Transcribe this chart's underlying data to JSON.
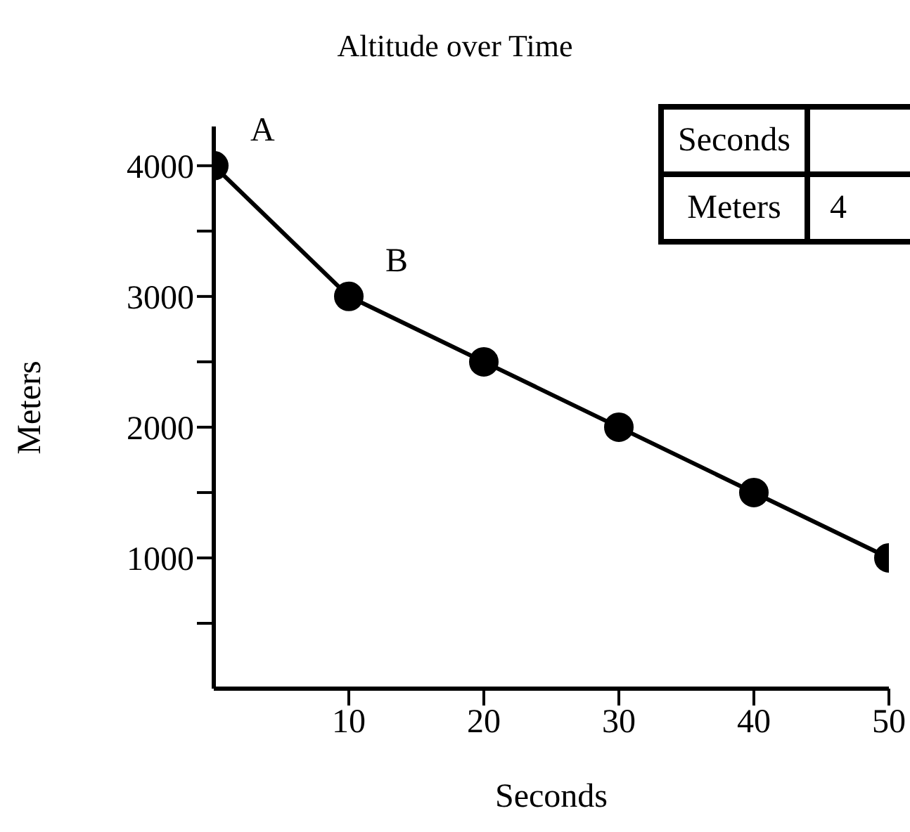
{
  "chart_data": {
    "type": "line",
    "title": "Altitude over Time",
    "xlabel": "Seconds",
    "ylabel": "Meters",
    "x": [
      0,
      10,
      20,
      30,
      40,
      50
    ],
    "series": [
      {
        "color": "#000000",
        "values": [
          4000,
          3000,
          2500,
          2000,
          1500,
          1000
        ]
      }
    ],
    "xlim": [
      0,
      50
    ],
    "xticks": [
      10,
      20,
      30,
      40,
      50
    ],
    "ylim": [
      0,
      4300
    ],
    "yticks": [
      {
        "value": 500,
        "label": null
      },
      1000,
      {
        "value": 1500,
        "label": null
      },
      2000,
      {
        "value": 2500,
        "label": null
      },
      3000,
      {
        "value": 3500,
        "label": null
      },
      4000
    ],
    "marker": "circle",
    "line_style": "solid",
    "annotations": [
      {
        "text": "A",
        "x": 0,
        "y": 4000
      },
      {
        "text": "B",
        "x": 10,
        "y": 3000
      },
      "Seconds",
      "Meters",
      "4"
    ]
  }
}
